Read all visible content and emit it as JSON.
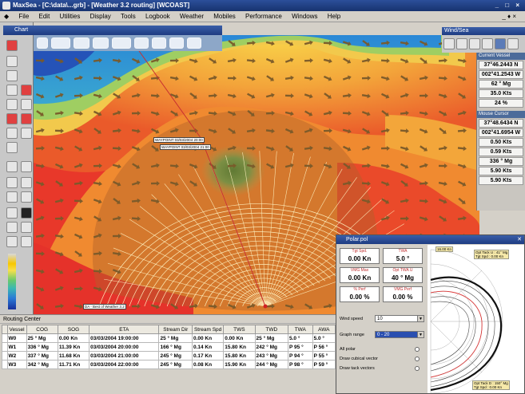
{
  "window": {
    "title": "MaxSea - [C:\\data\\...grb] - [Weather 3.2 routing] [WCOAST]",
    "controls": "_ □ ×"
  },
  "menu": [
    "File",
    "Edit",
    "Utilities",
    "Display",
    "Tools",
    "Logbook",
    "Weather",
    "Mobiles",
    "Performance",
    "Windows",
    "Help"
  ],
  "menu_right": "_ ♦ ×",
  "chart": {
    "header": "Chart"
  },
  "weather_panel": {
    "header": "Wind/Sea"
  },
  "right_panel": {
    "section1": "Current Vessel",
    "values1": [
      "37°46.2443 N",
      "002°41.2543 W",
      "62 ° Mg",
      "35.0 Kts",
      "24 %"
    ],
    "section2": "Mouse Cursor",
    "values2": [
      "37°48.6434 N",
      "002°41.6954 W",
      "0.50 Kts",
      "0.59 Kts",
      "336 ° Mg",
      "5.90 Kts",
      "5.90 Kts"
    ]
  },
  "legend": {
    "ticks": [
      "",
      "",
      "",
      "",
      "",
      "",
      "",
      "",
      ""
    ]
  },
  "map_labels": {
    "label1": "WAYPOINT 03/03/2004 20:00",
    "label2": "WAYPOINT 03/03/2004 21:00",
    "label3": "DA - Best of Weather 3.2",
    "bottom_labels": [
      "",
      "",
      "",
      "",
      "",
      "",
      "",
      "",
      ""
    ]
  },
  "routing": {
    "title": "Routing Center",
    "columns": [
      "Vessel",
      "COG",
      "SOG",
      "ETA",
      "Stream Dir",
      "Stream Spd",
      "TWS",
      "TWD",
      "TWA",
      "AWA"
    ],
    "rows": [
      {
        "vessel": "W0",
        "cog": "25 ° Mg",
        "sog": "0.00 Kn",
        "eta": "03/03/2004 19:00:00",
        "sdir": "25 ° Mg",
        "sspd": "0.00 Kn",
        "tws": "0.00 Kn",
        "twd": "25 ° Mg",
        "twa": "5.0 °",
        "awa": "5.0 °"
      },
      {
        "vessel": "W1",
        "cog": "336 ° Mg",
        "sog": "11.39 Kn",
        "eta": "03/03/2004 20:00:00",
        "sdir": "166 ° Mg",
        "sspd": "0.14 Kn",
        "tws": "15.80 Kn",
        "twd": "242 ° Mg",
        "twa": "P 95 °",
        "awa": "P 56 °"
      },
      {
        "vessel": "W2",
        "cog": "337 ° Mg",
        "sog": "11.68 Kn",
        "eta": "03/03/2004 21:00:00",
        "sdir": "245 ° Mg",
        "sspd": "0.17 Kn",
        "tws": "15.80 Kn",
        "twd": "243 ° Mg",
        "twa": "P 94 °",
        "awa": "P 55 °"
      },
      {
        "vessel": "W3",
        "cog": "342 ° Mg",
        "sog": "11.71 Kn",
        "eta": "03/03/2004 22:00:00",
        "sdir": "245 ° Mg",
        "sspd": "0.08 Kn",
        "tws": "15.90 Kn",
        "twd": "244 ° Mg",
        "twa": "P 98 °",
        "awa": "P 59 °"
      }
    ]
  },
  "polar": {
    "title": "Polar.pol",
    "boxes": [
      {
        "label": "Tgt Spd.",
        "value": "0.00 Kn"
      },
      {
        "label": "TWA",
        "value": "5.0 °"
      },
      {
        "label": "VMG Max",
        "value": "0.00 Kn"
      },
      {
        "label": "Opt TWA U",
        "value": "40 ° Mg"
      },
      {
        "label": "% Perf",
        "value": "0.00 %"
      },
      {
        "label": "VMG Perf",
        "value": "0.00 %"
      }
    ],
    "wind_speed_label": "Wind speed",
    "wind_speed_value": "10",
    "graph_range_label": "Graph range",
    "graph_range_value": "0 - 20",
    "options": [
      "All polar",
      "Draw cubical vector",
      "Draw tack vectors"
    ],
    "plot_top": "16.00 Kn",
    "plot_tag1": "Opt Tack U : 41° Mg\nTgt Spd : 0.00 Kn",
    "plot_tag2": "Opt Tack D : 150° Mg\nTgt Spd : 0.00 Kn"
  }
}
